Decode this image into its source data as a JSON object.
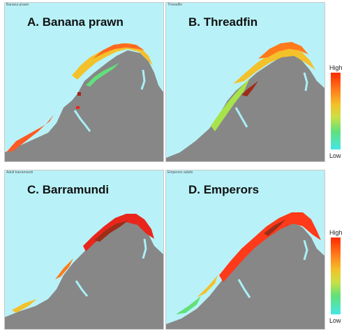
{
  "panels": [
    {
      "key": "A",
      "tiny": "Banana prawn",
      "title": "A. Banana prawn"
    },
    {
      "key": "B",
      "tiny": "Threadfin",
      "title": "B. Threadfin"
    },
    {
      "key": "C",
      "tiny": "Adult barramundi",
      "title": "C. Barramundi"
    },
    {
      "key": "D",
      "tiny": "Emperors adults",
      "title": "D. Emperors"
    }
  ],
  "legend_top": {
    "high": "High",
    "low": "Low"
  },
  "legend_bottom": {
    "high": "High",
    "low": "Low"
  },
  "colors": {
    "sea": "#b8f2f8",
    "land": "#878787",
    "high": "#e9261c",
    "mid_high": "#ff7a1a",
    "mid": "#f3c12a",
    "mid_low": "#a7e34a",
    "low": "#5de8e4",
    "deep_high": "#9d2d18"
  }
}
